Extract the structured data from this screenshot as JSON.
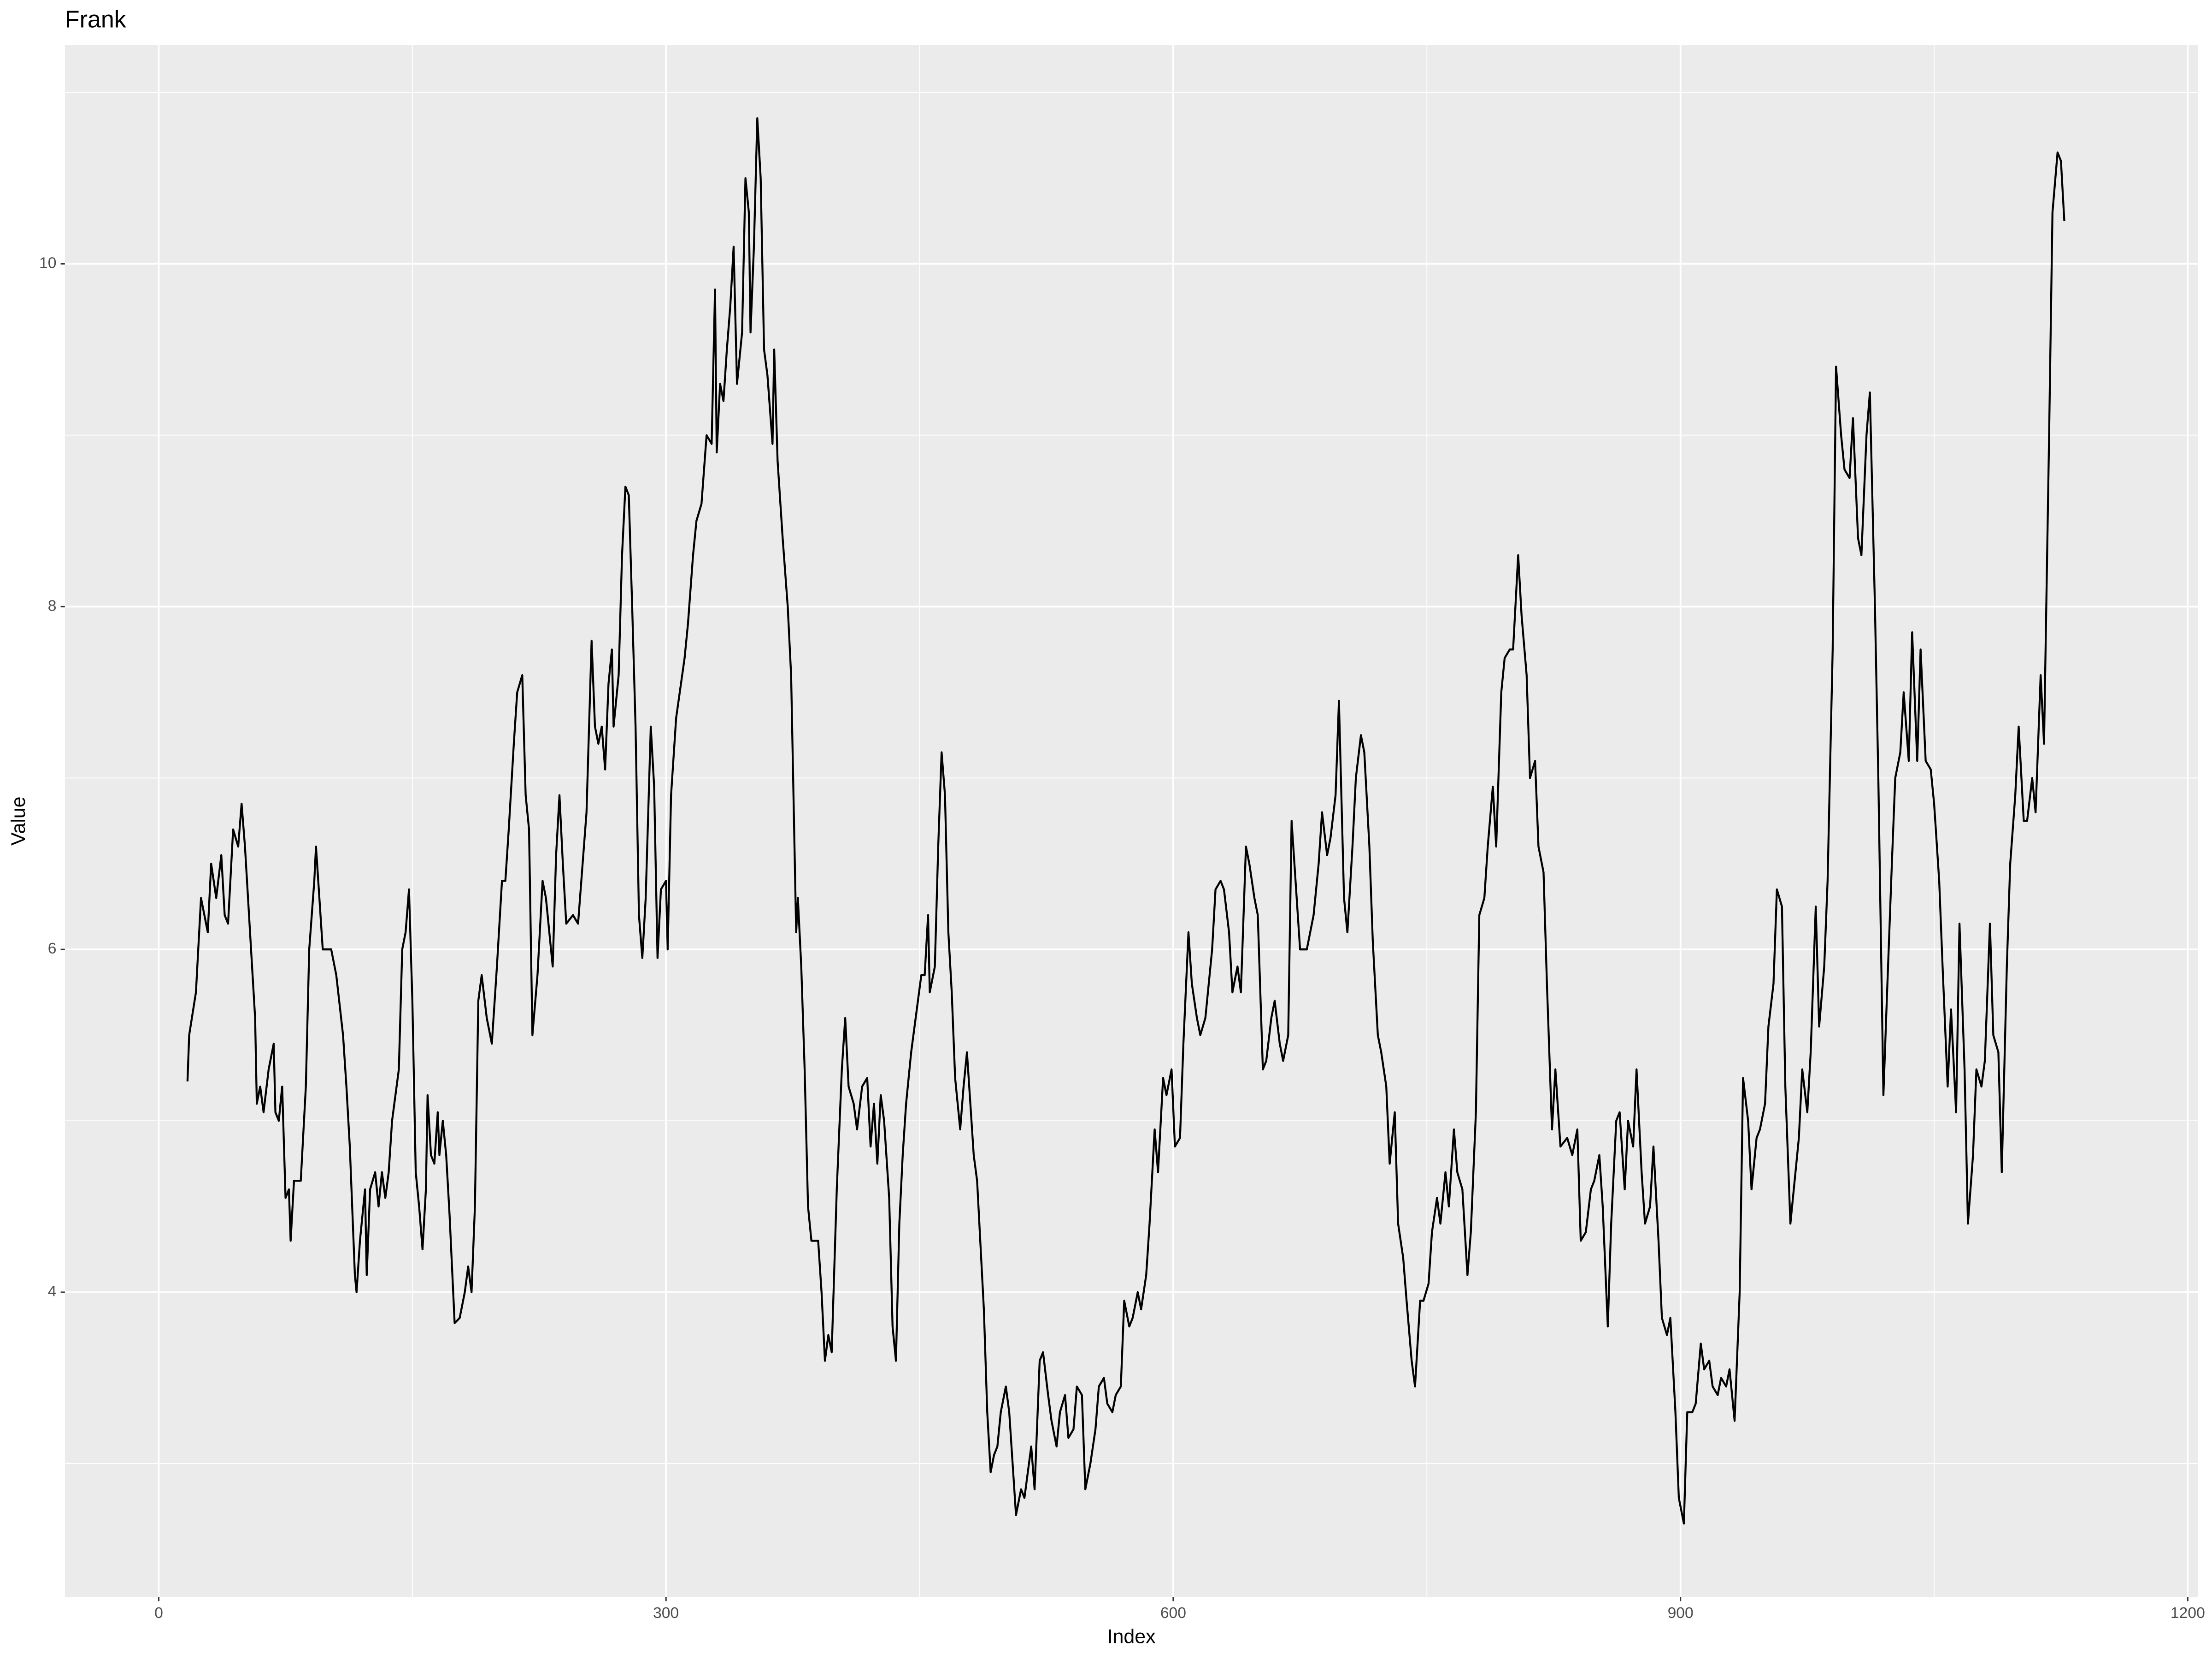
{
  "chart_data": {
    "type": "line",
    "title": "Frank",
    "xlabel": "Index",
    "ylabel": "Value",
    "color": "#000000",
    "grid": true,
    "xlim": [
      -55.5,
      1206
    ],
    "ylim": [
      2.222,
      11.276
    ],
    "xticks": [
      0,
      300,
      600,
      900,
      1200
    ],
    "yticks": [
      4,
      6,
      8,
      10
    ],
    "xminor": [
      150,
      450,
      750,
      1050
    ],
    "yminor": [
      3,
      5,
      7,
      9,
      11
    ],
    "x": [
      17,
      18,
      22,
      25,
      29,
      31,
      34,
      37,
      39,
      41,
      44,
      47,
      49,
      51,
      54,
      57,
      58,
      60,
      62,
      65,
      68,
      69,
      71,
      73,
      75,
      77,
      78,
      80,
      84,
      87,
      89,
      92,
      93,
      95,
      97,
      102,
      105,
      109,
      111,
      113,
      116,
      117,
      119,
      122,
      123,
      125,
      128,
      130,
      132,
      134,
      136,
      138,
      142,
      144,
      146,
      148,
      150,
      152,
      154,
      156,
      158,
      159,
      161,
      163,
      165,
      166,
      168,
      170,
      172,
      175,
      178,
      181,
      183,
      185,
      187,
      189,
      191,
      194,
      197,
      200,
      203,
      205,
      207,
      210,
      212,
      215,
      217,
      219,
      221,
      224,
      227,
      229,
      231,
      233,
      235,
      237,
      239,
      241,
      245,
      248,
      253,
      256,
      258,
      260,
      262,
      264,
      266,
      268,
      269,
      272,
      274,
      276,
      278,
      280,
      282,
      284,
      286,
      288,
      291,
      293,
      295,
      297,
      300,
      301,
      303,
      306,
      311,
      313,
      316,
      318,
      321,
      324,
      327,
      329,
      330,
      332,
      334,
      336,
      338,
      340,
      342,
      345,
      347,
      349,
      350,
      352,
      354,
      356,
      358,
      360,
      363,
      364,
      366,
      369,
      372,
      374,
      377,
      378,
      380,
      382,
      384,
      386,
      390,
      392,
      394,
      396,
      398,
      401,
      404,
      406,
      408,
      411,
      413,
      416,
      419,
      421,
      423,
      425,
      427,
      429,
      432,
      434,
      436,
      438,
      440,
      442,
      445,
      447,
      449,
      451,
      453,
      455,
      456,
      459,
      461,
      463,
      465,
      467,
      469,
      471,
      474,
      476,
      478,
      480,
      482,
      484,
      488,
      490,
      492,
      494,
      496,
      498,
      501,
      503,
      505,
      507,
      510,
      512,
      516,
      518,
      521,
      523,
      526,
      528,
      531,
      533,
      536,
      538,
      541,
      543,
      546,
      548,
      551,
      554,
      556,
      559,
      561,
      564,
      566,
      569,
      571,
      574,
      576,
      579,
      581,
      584,
      586,
      589,
      591,
      594,
      596,
      599,
      601,
      604,
      606,
      609,
      611,
      614,
      616,
      619,
      623,
      625,
      628,
      630,
      633,
      635,
      638,
      640,
      643,
      645,
      648,
      650,
      653,
      655,
      658,
      660,
      663,
      665,
      668,
      670,
      673,
      675,
      679,
      683,
      686,
      688,
      691,
      693,
      696,
      698,
      701,
      703,
      706,
      708,
      711,
      713,
      716,
      718,
      721,
      723,
      726,
      728,
      731,
      733,
      736,
      738,
      741,
      743,
      746,
      748,
      751,
      753,
      756,
      758,
      761,
      763,
      766,
      768,
      771,
      774,
      776,
      779,
      781,
      784,
      786,
      789,
      791,
      794,
      796,
      799,
      801,
      804,
      806,
      809,
      811,
      814,
      816,
      819,
      821,
      824,
      826,
      829,
      833,
      836,
      839,
      841,
      844,
      847,
      849,
      852,
      854,
      857,
      859,
      862,
      864,
      867,
      869,
      872,
      874,
      877,
      879,
      882,
      884,
      887,
      889,
      892,
      894,
      897,
      899,
      902,
      904,
      907,
      909,
      912,
      914,
      917,
      919,
      922,
      924,
      927,
      929,
      932,
      935,
      937,
      940,
      942,
      945,
      947,
      950,
      952,
      955,
      957,
      960,
      962,
      965,
      967,
      970,
      972,
      975,
      977,
      980,
      982,
      985,
      987,
      990,
      992,
      995,
      997,
      1000,
      1002,
      1005,
      1007,
      1010,
      1012,
      1015,
      1017,
      1020,
      1022,
      1025,
      1027,
      1030,
      1032,
      1035,
      1037,
      1040,
      1042,
      1045,
      1048,
      1050,
      1053,
      1055,
      1058,
      1060,
      1063,
      1065,
      1068,
      1070,
      1073,
      1075,
      1078,
      1080,
      1083,
      1085,
      1088,
      1090,
      1093,
      1095,
      1098,
      1100,
      1103,
      1105,
      1108,
      1110,
      1113,
      1115,
      1118,
      1120,
      1123,
      1125,
      1127
    ],
    "values": [
      5.23,
      5.5,
      5.75,
      6.3,
      6.1,
      6.5,
      6.3,
      6.55,
      6.2,
      6.15,
      6.7,
      6.6,
      6.85,
      6.6,
      6.1,
      5.6,
      5.1,
      5.2,
      5.05,
      5.3,
      5.45,
      5.05,
      5.0,
      5.2,
      4.55,
      4.6,
      4.3,
      4.65,
      4.65,
      5.2,
      6.0,
      6.4,
      6.6,
      6.3,
      6.0,
      6.0,
      5.85,
      5.5,
      5.2,
      4.85,
      4.1,
      4.0,
      4.3,
      4.6,
      4.1,
      4.6,
      4.7,
      4.5,
      4.7,
      4.55,
      4.7,
      5.0,
      5.3,
      6.0,
      6.1,
      6.35,
      5.7,
      4.7,
      4.5,
      4.25,
      4.6,
      5.15,
      4.8,
      4.75,
      5.05,
      4.8,
      5.0,
      4.8,
      4.45,
      3.82,
      3.85,
      4.0,
      4.15,
      4.0,
      4.5,
      5.7,
      5.85,
      5.6,
      5.45,
      5.9,
      6.4,
      6.4,
      6.7,
      7.2,
      7.5,
      7.6,
      6.9,
      6.7,
      5.5,
      5.85,
      6.4,
      6.3,
      6.1,
      5.9,
      6.55,
      6.9,
      6.5,
      6.15,
      6.2,
      6.15,
      6.8,
      7.8,
      7.3,
      7.2,
      7.3,
      7.05,
      7.55,
      7.75,
      7.3,
      7.6,
      8.3,
      8.7,
      8.65,
      8.0,
      7.3,
      6.2,
      5.95,
      6.3,
      7.3,
      6.95,
      5.95,
      6.35,
      6.4,
      6.0,
      6.9,
      7.35,
      7.7,
      7.9,
      8.3,
      8.5,
      8.6,
      9.0,
      8.95,
      9.85,
      8.9,
      9.3,
      9.2,
      9.5,
      9.75,
      10.1,
      9.3,
      9.6,
      10.5,
      10.3,
      9.6,
      10.1,
      10.85,
      10.5,
      9.5,
      9.35,
      8.95,
      9.5,
      8.85,
      8.4,
      8.0,
      7.6,
      6.1,
      6.3,
      5.9,
      5.3,
      4.5,
      4.3,
      4.3,
      4.0,
      3.6,
      3.75,
      3.65,
      4.6,
      5.3,
      5.6,
      5.2,
      5.1,
      4.95,
      5.2,
      5.25,
      4.85,
      5.1,
      4.75,
      5.15,
      5.0,
      4.55,
      3.8,
      3.6,
      4.4,
      4.8,
      5.1,
      5.4,
      5.55,
      5.7,
      5.85,
      5.85,
      6.2,
      5.75,
      5.9,
      6.6,
      7.15,
      6.9,
      6.1,
      5.75,
      5.25,
      4.95,
      5.2,
      5.4,
      5.1,
      4.8,
      4.65,
      3.9,
      3.3,
      2.95,
      3.05,
      3.1,
      3.3,
      3.45,
      3.3,
      3.0,
      2.7,
      2.85,
      2.8,
      3.1,
      2.85,
      3.6,
      3.65,
      3.4,
      3.25,
      3.1,
      3.3,
      3.4,
      3.15,
      3.2,
      3.45,
      3.4,
      2.85,
      3.0,
      3.2,
      3.45,
      3.5,
      3.35,
      3.3,
      3.4,
      3.45,
      3.95,
      3.8,
      3.85,
      4.0,
      3.9,
      4.1,
      4.4,
      4.95,
      4.7,
      5.25,
      5.15,
      5.3,
      4.85,
      4.9,
      5.45,
      6.1,
      5.8,
      5.6,
      5.5,
      5.6,
      6.0,
      6.35,
      6.4,
      6.35,
      6.1,
      5.75,
      5.9,
      5.75,
      6.6,
      6.5,
      6.3,
      6.2,
      5.3,
      5.35,
      5.6,
      5.7,
      5.45,
      5.35,
      5.5,
      6.75,
      6.3,
      6.0,
      6.0,
      6.2,
      6.5,
      6.8,
      6.55,
      6.65,
      6.9,
      7.45,
      6.3,
      6.1,
      6.6,
      7.0,
      7.25,
      7.15,
      6.6,
      6.05,
      5.5,
      5.4,
      5.2,
      4.75,
      5.05,
      4.4,
      4.2,
      3.95,
      3.6,
      3.45,
      3.95,
      3.95,
      4.05,
      4.35,
      4.55,
      4.4,
      4.7,
      4.5,
      4.95,
      4.7,
      4.6,
      4.1,
      4.35,
      5.05,
      6.2,
      6.3,
      6.6,
      6.95,
      6.6,
      7.5,
      7.7,
      7.75,
      7.75,
      8.3,
      7.95,
      7.6,
      7.0,
      7.1,
      6.6,
      6.45,
      5.8,
      4.95,
      5.3,
      4.85,
      4.9,
      4.8,
      4.95,
      4.3,
      4.35,
      4.6,
      4.65,
      4.8,
      4.5,
      3.8,
      4.4,
      5.0,
      5.05,
      4.6,
      5.0,
      4.85,
      5.3,
      4.7,
      4.4,
      4.5,
      4.85,
      4.3,
      3.85,
      3.75,
      3.85,
      3.3,
      2.8,
      2.65,
      3.3,
      3.3,
      3.35,
      3.7,
      3.55,
      3.6,
      3.45,
      3.4,
      3.5,
      3.45,
      3.55,
      3.25,
      4.0,
      5.25,
      5.0,
      4.6,
      4.9,
      4.95,
      5.1,
      5.55,
      5.8,
      6.35,
      6.25,
      5.2,
      4.4,
      4.6,
      4.9,
      5.3,
      5.05,
      5.4,
      6.25,
      5.55,
      5.9,
      6.4,
      7.75,
      9.4,
      9.0,
      8.8,
      8.75,
      9.1,
      8.4,
      8.3,
      9.0,
      9.25,
      8.0,
      7.0,
      5.15,
      5.7,
      6.5,
      7.0,
      7.15,
      7.5,
      7.1,
      7.85,
      7.1,
      7.75,
      7.1,
      7.05,
      6.85,
      6.4,
      5.9,
      5.2,
      5.65,
      5.05,
      6.15,
      5.3,
      4.4,
      4.8,
      5.3,
      5.2,
      5.35,
      6.15,
      5.5,
      5.4,
      4.7,
      5.9,
      6.5,
      6.9,
      7.3,
      6.75,
      6.75,
      7.0,
      6.8,
      7.6,
      7.2,
      9.0,
      10.3,
      10.65,
      10.6,
      10.25
    ]
  }
}
